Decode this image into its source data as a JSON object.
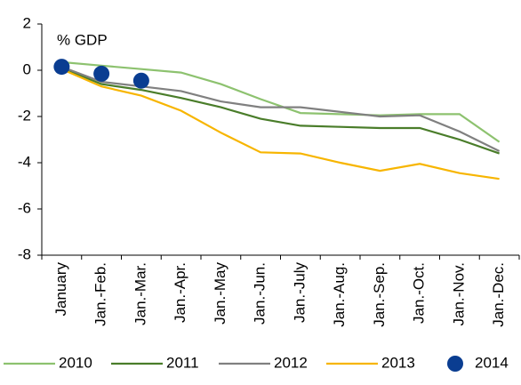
{
  "chart_data": {
    "type": "line",
    "annotation": "% GDP",
    "categories": [
      "January",
      "Jan.-Feb.",
      "Jan.-Mar.",
      "Jan.-Apr.",
      "Jan.-May",
      "Jan.-Jun.",
      "Jan.-July",
      "Jan.-Aug.",
      "Jan.-Sep.",
      "Jan.-Oct.",
      "Jan.-Nov.",
      "Jan.-Dec."
    ],
    "series": [
      {
        "name": "2010",
        "color": "#8dc26f",
        "values": [
          0.35,
          0.2,
          0.05,
          -0.1,
          -0.6,
          -1.25,
          -1.85,
          -1.9,
          -1.95,
          -1.9,
          -1.9,
          -3.1
        ]
      },
      {
        "name": "2011",
        "color": "#4a7d2a",
        "values": [
          0.1,
          -0.6,
          -0.85,
          -1.2,
          -1.6,
          -2.1,
          -2.4,
          -2.45,
          -2.5,
          -2.5,
          -3.0,
          -3.6
        ]
      },
      {
        "name": "2012",
        "color": "#808080",
        "values": [
          0.15,
          -0.5,
          -0.7,
          -0.9,
          -1.35,
          -1.6,
          -1.6,
          -1.8,
          -2.0,
          -1.95,
          -2.65,
          -3.5
        ]
      },
      {
        "name": "2013",
        "color": "#f7b500",
        "values": [
          0.05,
          -0.7,
          -1.1,
          -1.75,
          -2.7,
          -3.55,
          -3.6,
          -4.0,
          -4.35,
          -4.05,
          -4.45,
          -4.7
        ]
      },
      {
        "name": "2014",
        "color": "#0a3d91",
        "markers_only": true,
        "values": [
          0.15,
          -0.15,
          -0.45,
          null,
          null,
          null,
          null,
          null,
          null,
          null,
          null,
          null
        ]
      }
    ],
    "ylim": [
      -8,
      2
    ],
    "yticks": [
      -8,
      -6,
      -4,
      -2,
      0,
      2
    ],
    "grid": false
  }
}
